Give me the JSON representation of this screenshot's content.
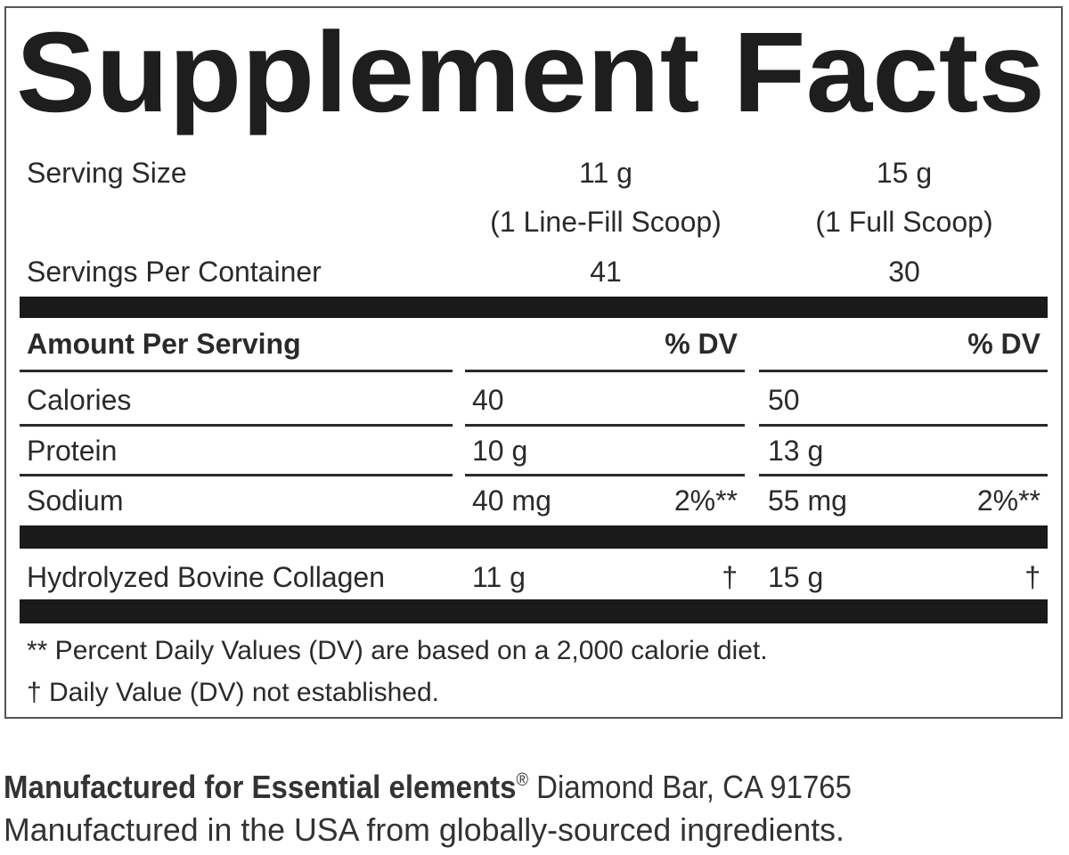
{
  "title": "Supplement Facts",
  "serving_size": {
    "label": "Serving Size",
    "columns": [
      {
        "amount": "11 g",
        "unit": "(1 Line-Fill Scoop)"
      },
      {
        "amount": "15 g",
        "unit": "(1 Full Scoop)"
      }
    ]
  },
  "servings_per_container": {
    "label": "Servings Per Container",
    "columns": [
      "41",
      "30"
    ]
  },
  "header": {
    "label": "Amount Per Serving",
    "dv": [
      "% DV",
      "% DV"
    ]
  },
  "rows": [
    {
      "name": "Calories",
      "amounts": [
        "40",
        "50"
      ]
    },
    {
      "name": "Protein",
      "amounts": [
        "10 g",
        "13 g"
      ]
    },
    {
      "name": "Sodium",
      "amounts": [
        "40 mg",
        "55 mg"
      ],
      "dv": [
        "2%**",
        "2%**"
      ]
    },
    {
      "name": "Hydrolyzed Bovine Collagen",
      "amounts": [
        "11 g",
        "15 g"
      ],
      "dv": [
        "†",
        "†"
      ]
    }
  ],
  "footnotes": [
    "** Percent Daily Values (DV) are based on a 2,000 calorie diet.",
    "† Daily Value (DV) not established."
  ],
  "footer": {
    "manufacturer": "Manufactured for Essential elements",
    "mark": "®",
    "address": " Diamond Bar, CA 91765",
    "origin": "Manufactured in the USA from globally-sourced ingredients."
  }
}
